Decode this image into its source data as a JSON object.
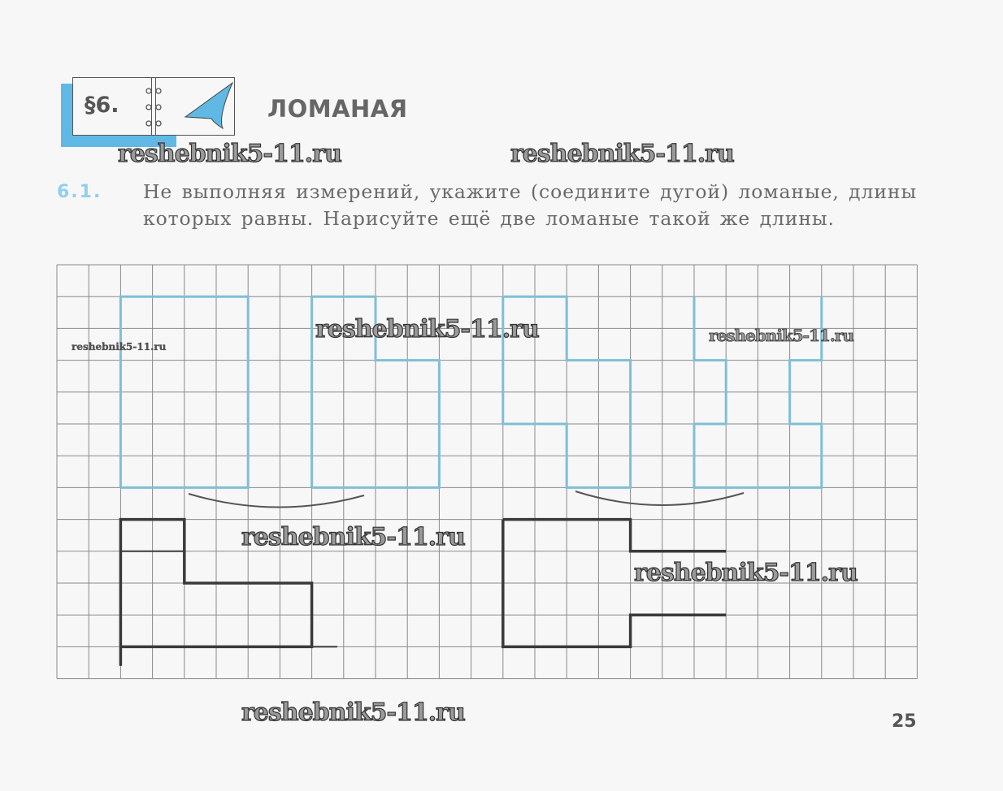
{
  "section": {
    "label": "§6.",
    "title": "ЛОМАНАЯ"
  },
  "exercise": {
    "number": "6.1.",
    "lines": [
      "Не выполняя измерений, укажите (соедините дугой) ломаные, длины",
      "которых равны. Нарисуйте ещё две ломаные такой же длины."
    ]
  },
  "watermarks": [
    "reshebnik5-11.ru",
    "reshebnik5-11.ru",
    "reshebnik5-11.ru",
    "reshebnik5-11.ru",
    "reshebnik5-11.ru",
    "reshebnik5-11.ru",
    "reshebnik5-11.ru",
    "reshebnik5-11.ru"
  ],
  "page_number": "25",
  "colors": {
    "accent": "#5fb9e4",
    "printed_polyline": "#7fbfd8",
    "drawn_polyline": "#3a3a3a",
    "grid": "#8a8a8a"
  }
}
